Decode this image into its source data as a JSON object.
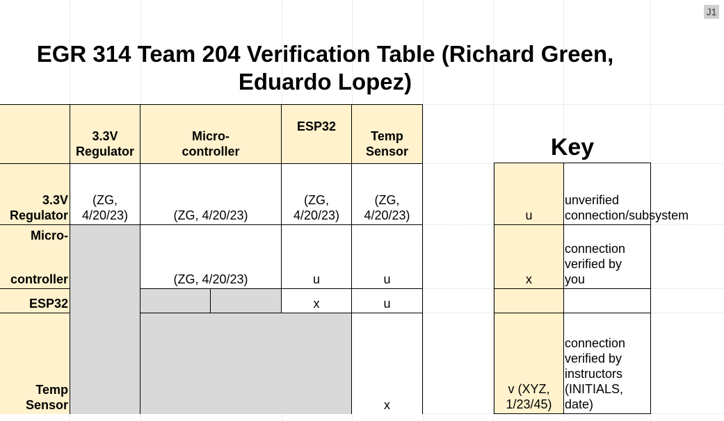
{
  "cell_ref": "J1",
  "title": "EGR 314 Team 204 Verification Table (Richard Green, Eduardo Lopez)",
  "header": {
    "c1": "3.3V\nRegulator",
    "c2": "Micro-\ncontroller",
    "c3": "ESP32",
    "c4": "Temp\nSensor"
  },
  "rows": {
    "r1": {
      "label": "3.3V\nRegulator",
      "c1": "(ZG,\n4/20/23)",
      "c2": "(ZG, 4/20/23)",
      "c3": "(ZG,\n4/20/23)",
      "c4": "(ZG,\n4/20/23)"
    },
    "r2": {
      "label_top": "Micro-",
      "label_bottom": "controller",
      "c2": "(ZG, 4/20/23)",
      "c3": "u",
      "c4": "u"
    },
    "r3": {
      "label": "ESP32",
      "c3": "x",
      "c4": "u"
    },
    "r4": {
      "label": "Temp\nSensor",
      "c4": "x"
    }
  },
  "key": {
    "title": "Key",
    "rows": [
      {
        "symbol": "u",
        "desc": "unverified\nconnection/subsystem"
      },
      {
        "symbol": "x",
        "desc": "connection\nverified by\nyou"
      },
      {
        "symbol": "",
        "desc": ""
      },
      {
        "symbol": "v (XYZ,\n1/23/45)",
        "desc": "connection\nverified by\ninstructors\n(INITIALS,\ndate)"
      }
    ]
  },
  "colors": {
    "header_fill": "#fff2cc",
    "disabled_fill": "#d9d9d9",
    "ref_badge": "#cfcfcf"
  }
}
